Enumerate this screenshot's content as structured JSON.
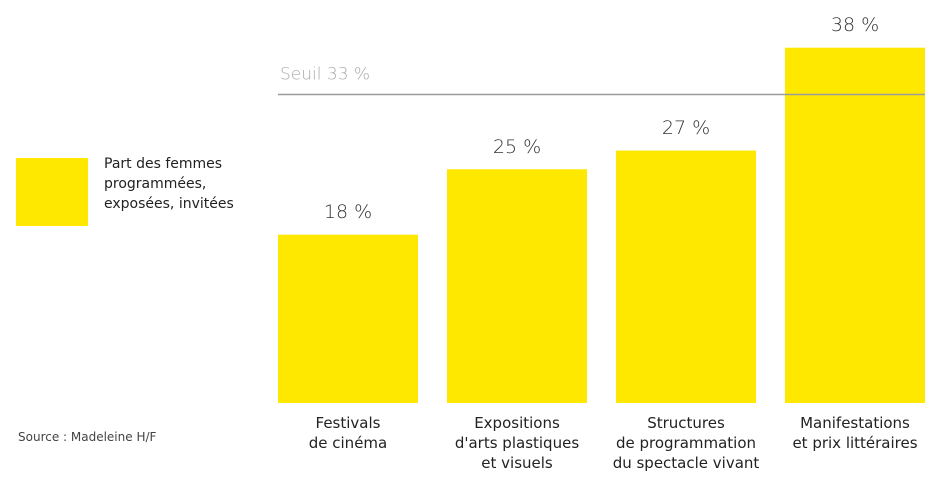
{
  "chart_data": {
    "type": "bar",
    "categories": [
      [
        "Festivals",
        "de cinéma"
      ],
      [
        "Expositions",
        "d'arts plastiques",
        "et visuels"
      ],
      [
        "Structures",
        "de programmation",
        "du spectacle vivant"
      ],
      [
        "Manifestations",
        "et prix littéraires"
      ]
    ],
    "series": [
      {
        "name": "Part des femmes programmées, exposées, invitées",
        "color": "#ffe800",
        "values": [
          18,
          25,
          27,
          38
        ],
        "value_labels": [
          "18 %",
          "25 %",
          "27 %",
          "38 %"
        ]
      }
    ],
    "ylim": [
      0,
      40
    ],
    "threshold": {
      "value": 33,
      "label": "Seuil 33 %"
    },
    "source": "Source : Madeleine H/F"
  }
}
